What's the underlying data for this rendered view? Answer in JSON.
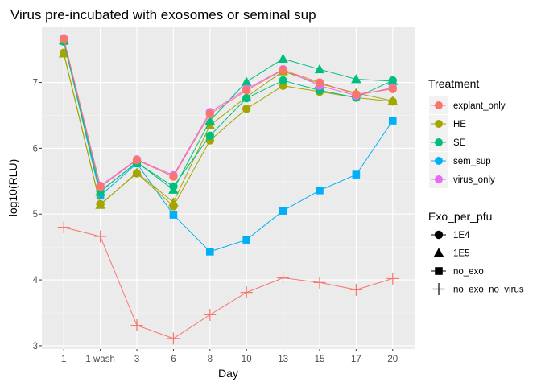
{
  "chart_data": {
    "type": "line",
    "title": "Virus pre-incubated with exosomes or seminal sup",
    "xlabel": "Day",
    "ylabel": "log10(RLU)",
    "categories": [
      "1",
      "1 wash",
      "3",
      "6",
      "8",
      "10",
      "13",
      "15",
      "17",
      "20"
    ],
    "ylim": [
      2.95,
      7.85
    ],
    "yticks": [
      3,
      4,
      5,
      6,
      7
    ],
    "grid": true,
    "legend_position": "right",
    "legends": {
      "treatment": {
        "title": "Treatment",
        "items": [
          {
            "label": "explant_only",
            "color": "#F8766D"
          },
          {
            "label": "HE",
            "color": "#A3A500"
          },
          {
            "label": "SE",
            "color": "#00BF7D"
          },
          {
            "label": "sem_sup",
            "color": "#00B0F6"
          },
          {
            "label": "virus_only",
            "color": "#E76BF3"
          }
        ]
      },
      "shape": {
        "title": "Exo_per_pfu",
        "items": [
          {
            "label": "1E4",
            "shape": "circle"
          },
          {
            "label": "1E5",
            "shape": "triangle"
          },
          {
            "label": "no_exo",
            "shape": "square"
          },
          {
            "label": "no_exo_no_virus",
            "shape": "plus"
          }
        ]
      }
    },
    "series": [
      {
        "name": "explant_only",
        "treatment": "explant_only",
        "shape": "plus",
        "color": "#F8766D",
        "values": [
          4.8,
          4.66,
          3.31,
          3.11,
          3.47,
          3.81,
          4.03,
          3.96,
          3.85,
          4.02
        ]
      },
      {
        "name": "sem_sup",
        "treatment": "sem_sup",
        "shape": "square",
        "color": "#00B0F6",
        "values": [
          7.63,
          5.28,
          5.77,
          4.99,
          4.43,
          4.61,
          5.05,
          5.36,
          5.6,
          6.42
        ]
      },
      {
        "name": "HE 1E4",
        "treatment": "HE",
        "shape": "circle",
        "color": "#A3A500",
        "values": [
          7.45,
          5.15,
          5.62,
          5.12,
          6.12,
          6.6,
          6.95,
          6.86,
          6.77,
          6.71
        ]
      },
      {
        "name": "HE 1E5",
        "treatment": "HE",
        "shape": "triangle",
        "color": "#A3A500",
        "values": [
          7.44,
          5.14,
          5.63,
          5.18,
          6.35,
          6.78,
          7.17,
          6.98,
          6.84,
          6.72
        ]
      },
      {
        "name": "SE 1E4",
        "treatment": "SE",
        "shape": "circle",
        "color": "#00BF7D",
        "values": [
          7.62,
          5.35,
          5.78,
          5.42,
          6.19,
          6.76,
          7.03,
          6.88,
          6.77,
          7.03
        ]
      },
      {
        "name": "SE 1E5",
        "treatment": "SE",
        "shape": "triangle",
        "color": "#00BF7D",
        "values": [
          7.64,
          5.34,
          5.79,
          5.37,
          6.42,
          7.01,
          7.36,
          7.2,
          7.05,
          7.02
        ]
      },
      {
        "name": "virus_only",
        "treatment": "virus_only",
        "shape": "circle",
        "color": "#E76BF3",
        "values": [
          7.67,
          5.43,
          5.83,
          5.59,
          6.55,
          6.9,
          7.2,
          6.95,
          6.8,
          6.92
        ]
      },
      {
        "name": "explant_only with virus",
        "treatment": "explant_only",
        "shape": "circle",
        "color": "#F8766D",
        "values": [
          7.66,
          5.41,
          5.82,
          5.57,
          6.52,
          6.88,
          7.19,
          7.0,
          6.82,
          6.9
        ]
      }
    ]
  }
}
